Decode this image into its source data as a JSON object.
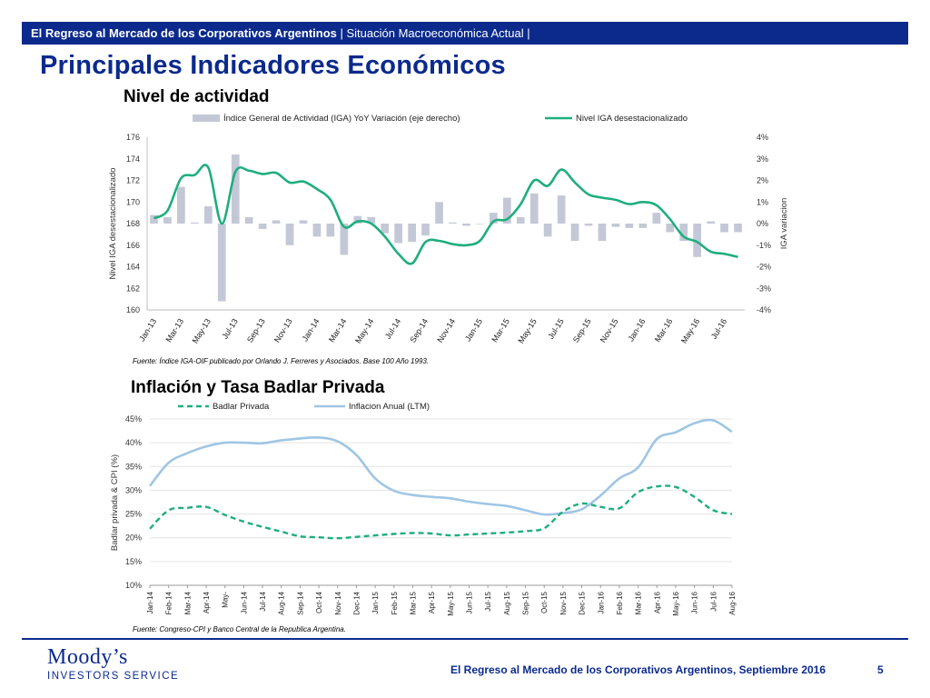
{
  "header": {
    "title_bold": "El Regreso al Mercado de los Corporativos Argentinos",
    "title_rest": " | Situación Macroeconómica Actual |"
  },
  "page_title": "Principales Indicadores Económicos",
  "sections": {
    "activity": {
      "title": "Nivel de actividad",
      "source": "Fuente: Índice IGA-OIF publicado por Orlando J. Ferreres y Asociados. Base 100 Año 1993."
    },
    "inflation": {
      "title": "Inflación y Tasa Badlar Privada",
      "source": "Fuente: Congreso-CPI y Banco Central de la Republica Argentina."
    }
  },
  "footer": {
    "logo_main": "Moody’s",
    "logo_sub": "INVESTORS SERVICE",
    "text": "El Regreso al Mercado de los Corporativos Argentinos, Septiembre 2016",
    "page": "5"
  },
  "colors": {
    "brand": "#0b2a8c",
    "green": "#1fae7e",
    "bar": "#c4c8d6",
    "blue_line": "#9fc6e4",
    "green_dash": "#1fae7e"
  },
  "chart_data": [
    {
      "type": "bar+line",
      "title": "Nivel de actividad",
      "ylabel": "Nivel IGA desestacionalizado",
      "y2label": "IGA variacion",
      "ylim": [
        160,
        176
      ],
      "y2lim": [
        -4,
        4
      ],
      "yticks": [
        160,
        162,
        164,
        166,
        168,
        170,
        172,
        174,
        176
      ],
      "y2ticks": [
        -4,
        -3,
        -2,
        -1,
        0,
        1,
        2,
        3,
        4
      ],
      "y2tick_labels": [
        "-4%",
        "-3%",
        "-2%",
        "-1%",
        "0%",
        "1%",
        "2%",
        "3%",
        "4%"
      ],
      "xtick_labels": [
        "Jan-13",
        "Mar-13",
        "May-13",
        "Jul-13",
        "Sep-13",
        "Nov-13",
        "Jan-14",
        "Mar-14",
        "May-14",
        "Jul-14",
        "Sep-14",
        "Nov-14",
        "Jan-15",
        "Mar-15",
        "May-15",
        "Jul-15",
        "Sep-15",
        "Nov-15",
        "Jan-16",
        "Mar-16",
        "May-16",
        "Jul-16"
      ],
      "legend_placement": "top",
      "months": [
        "Jan-13",
        "Feb-13",
        "Mar-13",
        "Apr-13",
        "May-13",
        "Jun-13",
        "Jul-13",
        "Aug-13",
        "Sep-13",
        "Oct-13",
        "Nov-13",
        "Dec-13",
        "Jan-14",
        "Feb-14",
        "Mar-14",
        "Apr-14",
        "May-14",
        "Jun-14",
        "Jul-14",
        "Aug-14",
        "Sep-14",
        "Oct-14",
        "Nov-14",
        "Dec-14",
        "Jan-15",
        "Feb-15",
        "Mar-15",
        "Apr-15",
        "May-15",
        "Jun-15",
        "Jul-15",
        "Aug-15",
        "Sep-15",
        "Oct-15",
        "Nov-15",
        "Dec-15",
        "Jan-16",
        "Feb-16",
        "Mar-16",
        "Apr-16",
        "May-16",
        "Jun-16",
        "Jul-16",
        "Aug-16"
      ],
      "series": [
        {
          "name": "Índice General de Actividad (IGA) YoY Variación (eje derecho)",
          "kind": "bar",
          "axis": "right",
          "values": [
            0.4,
            0.3,
            1.7,
            0.05,
            0.8,
            -3.6,
            3.2,
            0.3,
            -0.25,
            0.15,
            -1.0,
            0.15,
            -0.6,
            -0.6,
            -1.45,
            0.35,
            0.3,
            -0.45,
            -0.9,
            -0.85,
            -0.55,
            1.0,
            0.05,
            -0.1,
            0.0,
            0.5,
            1.2,
            0.3,
            1.4,
            -0.6,
            1.3,
            -0.8,
            -0.1,
            -0.8,
            -0.15,
            -0.2,
            -0.2,
            0.5,
            -0.4,
            -0.8,
            -1.55,
            0.1,
            -0.4,
            -0.4
          ]
        },
        {
          "name": "Nivel IGA desestacionalizado",
          "kind": "line",
          "axis": "left",
          "values": [
            168.5,
            169.2,
            172.2,
            172.5,
            173.2,
            168.0,
            172.8,
            172.9,
            172.6,
            172.7,
            171.8,
            171.9,
            171.2,
            170.2,
            167.7,
            168.2,
            168.0,
            166.8,
            165.2,
            164.3,
            166.3,
            166.4,
            166.1,
            166.0,
            166.4,
            168.2,
            168.4,
            169.8,
            172.0,
            171.5,
            173.0,
            171.8,
            170.7,
            170.4,
            170.2,
            169.8,
            170.0,
            169.7,
            168.4,
            166.8,
            166.3,
            165.4,
            165.2,
            164.9
          ]
        }
      ]
    },
    {
      "type": "line",
      "title": "Inflación y Tasa Badlar Privada",
      "ylabel": "Badlar privada & CPI (%)",
      "ylim": [
        10,
        45
      ],
      "yticks": [
        10,
        15,
        20,
        25,
        30,
        35,
        40,
        45
      ],
      "ytick_labels": [
        "10%",
        "15%",
        "20%",
        "25%",
        "30%",
        "35%",
        "40%",
        "45%"
      ],
      "x": [
        "Jan-14",
        "Feb-14",
        "Mar-14",
        "Apr-14",
        "May-14",
        "Jun-14",
        "Jul-14",
        "Aug-14",
        "Sep-14",
        "Oct-14",
        "Nov-14",
        "Dec-14",
        "Jan-15",
        "Feb-15",
        "Mar-15",
        "Apr-15",
        "May-15",
        "Jun-15",
        "Jul-15",
        "Aug-15",
        "Sep-15",
        "Oct-15",
        "Nov-15",
        "Dec-15",
        "Jan-16",
        "Feb-16",
        "Mar-16",
        "Apr-16",
        "May-16",
        "Jun-16",
        "Jul-16",
        "Aug-16"
      ],
      "xtick_labels": [
        "Jan-14",
        "Feb-14",
        "Mar-14",
        "Apr-14",
        "May-",
        "Jun-14",
        "Jul-14",
        "Aug-14",
        "Sep-14",
        "Oct-14",
        "Nov-14",
        "Dec-14",
        "Jan-15",
        "Feb-15",
        "Mar-15",
        "Apr-15",
        "May-15",
        "Jun-15",
        "Jul-15",
        "Aug-15",
        "Sep-15",
        "Oct-15",
        "Nov-15",
        "Dec-15",
        "Jan-16",
        "Feb-16",
        "Mar-16",
        "Apr-16",
        "May-16",
        "Jun-16",
        "Jul-16",
        "Aug-16"
      ],
      "legend_placement": "top",
      "series": [
        {
          "name": "Badlar Privada",
          "style": "dashed",
          "values": [
            21.9,
            25.8,
            26.3,
            26.5,
            24.8,
            23.4,
            22.3,
            21.3,
            20.3,
            20.1,
            19.9,
            20.2,
            20.5,
            20.8,
            21.0,
            20.9,
            20.5,
            20.7,
            20.9,
            21.1,
            21.4,
            22.0,
            25.5,
            27.2,
            26.5,
            26.2,
            29.6,
            30.8,
            30.7,
            28.6,
            25.8,
            25.0
          ]
        },
        {
          "name": "Inflacion Anual (LTM)",
          "style": "solid",
          "values": [
            30.9,
            35.8,
            37.8,
            39.2,
            40.0,
            40.0,
            39.9,
            40.5,
            40.9,
            41.1,
            40.3,
            37.4,
            32.5,
            29.9,
            29.0,
            28.6,
            28.3,
            27.6,
            27.1,
            26.7,
            25.8,
            24.9,
            25.2,
            26.0,
            28.9,
            32.5,
            34.8,
            40.8,
            42.2,
            44.1,
            44.7,
            42.3
          ]
        }
      ]
    }
  ]
}
